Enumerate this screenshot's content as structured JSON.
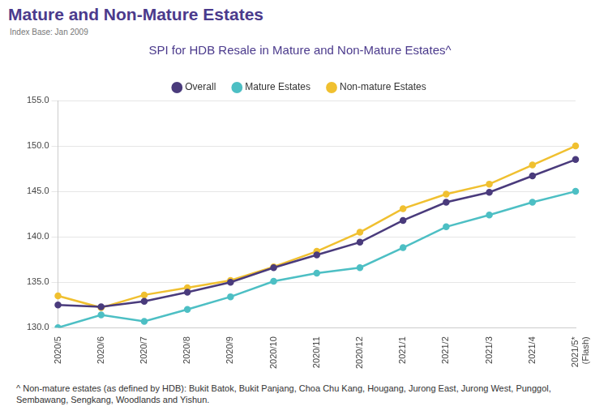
{
  "page": {
    "heading": "Mature and Non-Mature Estates",
    "subheading": "Index Base: Jan 2009",
    "footnote": "^ Non-mature estates (as defined by HDB): Bukit Batok, Bukit Panjang, Choa Chu Kang, Hougang, Jurong East, Jurong West, Punggol, Sembawang, Sengkang, Woodlands and Yishun."
  },
  "chart_data": {
    "type": "line",
    "title": "SPI for HDB Resale in Mature and Non-Mature Estates^",
    "categories": [
      "2020/5",
      "2020/6",
      "2020/7",
      "2020/8",
      "2020/9",
      "2020/10",
      "2020/11",
      "2020/12",
      "2021/1",
      "2021/2",
      "2021/3",
      "2021/4",
      "2021/5* (Flash)"
    ],
    "series": [
      {
        "name": "Overall",
        "color": "#4a3b7c",
        "marker": "circle",
        "line_style": "solid",
        "values": [
          132.5,
          132.3,
          132.9,
          133.9,
          135.0,
          136.6,
          138.0,
          139.4,
          141.8,
          143.8,
          144.9,
          146.7,
          148.5
        ]
      },
      {
        "name": "Mature Estates",
        "color": "#4dbfc4",
        "marker": "circle",
        "line_style": "solid",
        "values": [
          130.0,
          131.4,
          130.7,
          132.0,
          133.4,
          135.1,
          136.0,
          136.6,
          138.8,
          141.1,
          142.4,
          143.8,
          145.0
        ]
      },
      {
        "name": "Non-mature Estates",
        "color": "#f0c030",
        "marker": "circle",
        "line_style": "solid",
        "values": [
          133.5,
          132.2,
          133.6,
          134.4,
          135.2,
          136.7,
          138.4,
          140.5,
          143.1,
          144.7,
          145.8,
          147.9,
          150.0
        ]
      }
    ],
    "ylim": [
      130,
      155
    ],
    "yticks": [
      {
        "value": 130,
        "label": "130.0"
      },
      {
        "value": 135,
        "label": "135.0"
      },
      {
        "value": 140,
        "label": "140.0"
      },
      {
        "value": 145,
        "label": "145.0"
      },
      {
        "value": 150,
        "label": "150.0"
      },
      {
        "value": 155,
        "label": "155.0"
      }
    ],
    "grid": true,
    "legend": "top"
  }
}
